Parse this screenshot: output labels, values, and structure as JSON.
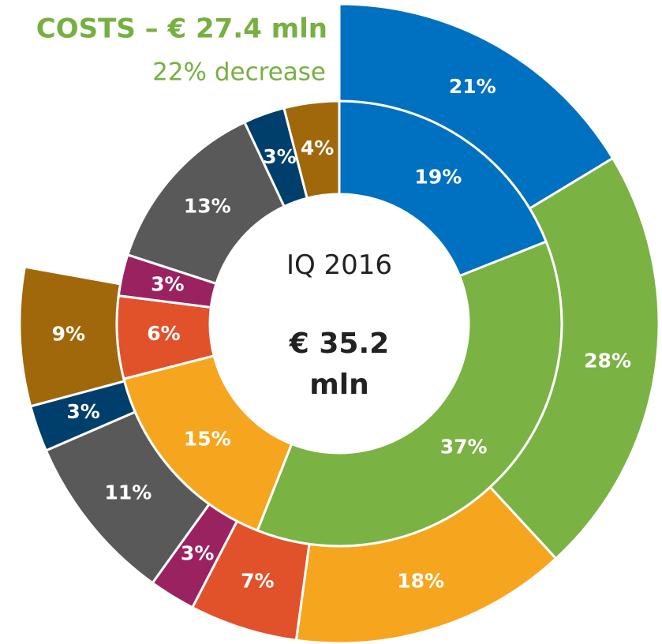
{
  "chart_data": {
    "type": "donut",
    "title": "COSTS – € 27.4 mln",
    "subtitle": "22% decrease",
    "center_label": "IQ 2016",
    "center_value": "€ 35.2 mln",
    "colors": [
      "#0070c0",
      "#7ab244",
      "#f6a61e",
      "#e1522b",
      "#9b2260",
      "#595959",
      "#003f6b",
      "#a0680a"
    ],
    "series": [
      {
        "total": 35.2,
        "values": [
          19,
          37,
          15,
          6,
          3,
          13,
          3,
          4
        ],
        "value_labels": [
          "19%",
          "37%",
          "15%",
          "6%",
          "3%",
          "13%",
          "3%",
          "4%"
        ]
      },
      {
        "total": 27.4,
        "values": [
          21,
          28,
          18,
          7,
          3,
          11,
          3,
          9
        ],
        "value_labels": [
          "21%",
          "28%",
          "18%",
          "7%",
          "3%",
          "11%",
          "3%",
          "9%"
        ]
      }
    ]
  }
}
